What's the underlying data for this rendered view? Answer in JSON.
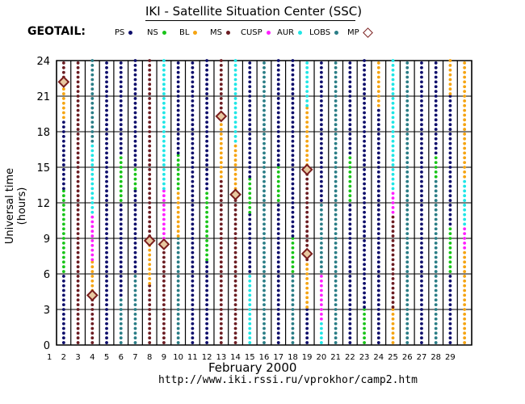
{
  "title": "IKI - Satellite Situation Center (SSC)",
  "mission": "GEOTAIL:",
  "legend": [
    {
      "label": "PS",
      "color": "#0d0d6b"
    },
    {
      "label": "NS",
      "color": "#19c419"
    },
    {
      "label": "BL",
      "color": "#f5a412"
    },
    {
      "label": "MS",
      "color": "#6b1c22"
    },
    {
      "label": "CUSP",
      "color": "#ff1fff"
    },
    {
      "label": "AUR",
      "color": "#1fe6e6"
    },
    {
      "label": "LOBS",
      "color": "#2a7d86"
    },
    {
      "label": "MP",
      "color": "#7a1e1e"
    }
  ],
  "footer": {
    "month": "February    2000",
    "url": "http://www.iki.rssi.ru/vprokhor/camp2.htm"
  },
  "chart_data": {
    "type": "scatter",
    "title": "IKI - Satellite Situation Center (SSC)",
    "xlabel": "February    2000",
    "ylabel": "Universal time (hours)",
    "x_ticks": [
      "1",
      "2",
      "3",
      "4",
      "5",
      "6",
      "7",
      "8",
      "9",
      "10",
      "11",
      "12",
      "13",
      "14",
      "15",
      "16",
      "17",
      "18",
      "19",
      "20",
      "21",
      "22",
      "23",
      "24",
      "25",
      "26",
      "27",
      "28",
      "29"
    ],
    "y_ticks": [
      0,
      3,
      6,
      9,
      12,
      15,
      18,
      21,
      24
    ],
    "ylim": [
      0,
      24
    ],
    "grid": true,
    "legend_placement": "top",
    "region_series": [
      {
        "day": 2,
        "segments": [
          {
            "region": "PS",
            "from": 0,
            "to": 6
          },
          {
            "region": "NS",
            "from": 6,
            "to": 13
          },
          {
            "region": "PS",
            "from": 13,
            "to": 19
          },
          {
            "region": "BL",
            "from": 19,
            "to": 22
          },
          {
            "region": "MS",
            "from": 22,
            "to": 24
          }
        ]
      },
      {
        "day": 3,
        "segments": [
          {
            "region": "MS",
            "from": 0,
            "to": 24
          }
        ]
      },
      {
        "day": 4,
        "segments": [
          {
            "region": "MS",
            "from": 0,
            "to": 4
          },
          {
            "region": "BL",
            "from": 4,
            "to": 7
          },
          {
            "region": "CUSP",
            "from": 7,
            "to": 11
          },
          {
            "region": "AUR",
            "from": 11,
            "to": 17
          },
          {
            "region": "LOBS",
            "from": 17,
            "to": 24
          }
        ]
      },
      {
        "day": 5,
        "segments": [
          {
            "region": "PS",
            "from": 0,
            "to": 24
          }
        ]
      },
      {
        "day": 6,
        "segments": [
          {
            "region": "LOBS",
            "from": 0,
            "to": 4
          },
          {
            "region": "PS",
            "from": 4,
            "to": 12
          },
          {
            "region": "NS",
            "from": 12,
            "to": 16
          },
          {
            "region": "PS",
            "from": 16,
            "to": 24
          }
        ]
      },
      {
        "day": 7,
        "segments": [
          {
            "region": "LOBS",
            "from": 0,
            "to": 6
          },
          {
            "region": "PS",
            "from": 6,
            "to": 13
          },
          {
            "region": "NS",
            "from": 13,
            "to": 15
          },
          {
            "region": "PS",
            "from": 15,
            "to": 24
          }
        ]
      },
      {
        "day": 8,
        "segments": [
          {
            "region": "MS",
            "from": 0,
            "to": 5
          },
          {
            "region": "BL",
            "from": 5,
            "to": 9
          },
          {
            "region": "MS",
            "from": 9,
            "to": 24
          }
        ]
      },
      {
        "day": 9,
        "segments": [
          {
            "region": "MS",
            "from": 0,
            "to": 8
          },
          {
            "region": "CUSP",
            "from": 8,
            "to": 13
          },
          {
            "region": "AUR",
            "from": 13,
            "to": 24
          }
        ]
      },
      {
        "day": 10,
        "segments": [
          {
            "region": "LOBS",
            "from": 0,
            "to": 9
          },
          {
            "region": "BL",
            "from": 9,
            "to": 13
          },
          {
            "region": "NS",
            "from": 13,
            "to": 16
          },
          {
            "region": "PS",
            "from": 16,
            "to": 24
          }
        ]
      },
      {
        "day": 11,
        "segments": [
          {
            "region": "PS",
            "from": 0,
            "to": 24
          }
        ]
      },
      {
        "day": 12,
        "segments": [
          {
            "region": "PS",
            "from": 0,
            "to": 7
          },
          {
            "region": "NS",
            "from": 7,
            "to": 13
          },
          {
            "region": "PS",
            "from": 13,
            "to": 24
          }
        ]
      },
      {
        "day": 13,
        "segments": [
          {
            "region": "MS",
            "from": 0,
            "to": 14
          },
          {
            "region": "BL",
            "from": 14,
            "to": 19
          },
          {
            "region": "MS",
            "from": 19,
            "to": 24
          }
        ]
      },
      {
        "day": 14,
        "segments": [
          {
            "region": "MS",
            "from": 0,
            "to": 13
          },
          {
            "region": "BL",
            "from": 13,
            "to": 17
          },
          {
            "region": "AUR",
            "from": 17,
            "to": 24
          }
        ]
      },
      {
        "day": 15,
        "segments": [
          {
            "region": "AUR",
            "from": 0,
            "to": 6
          },
          {
            "region": "PS",
            "from": 6,
            "to": 11
          },
          {
            "region": "NS",
            "from": 11,
            "to": 14
          },
          {
            "region": "PS",
            "from": 14,
            "to": 24
          }
        ]
      },
      {
        "day": 16,
        "segments": [
          {
            "region": "LOBS",
            "from": 0,
            "to": 24
          }
        ]
      },
      {
        "day": 17,
        "segments": [
          {
            "region": "PS",
            "from": 0,
            "to": 12
          },
          {
            "region": "NS",
            "from": 12,
            "to": 15
          },
          {
            "region": "PS",
            "from": 15,
            "to": 24
          }
        ]
      },
      {
        "day": 18,
        "segments": [
          {
            "region": "LOBS",
            "from": 0,
            "to": 6
          },
          {
            "region": "NS",
            "from": 6,
            "to": 9
          },
          {
            "region": "PS",
            "from": 9,
            "to": 24
          }
        ]
      },
      {
        "day": 19,
        "segments": [
          {
            "region": "PS",
            "from": 0,
            "to": 3
          },
          {
            "region": "BL",
            "from": 3,
            "to": 7
          },
          {
            "region": "MS",
            "from": 7,
            "to": 15
          },
          {
            "region": "BL",
            "from": 15,
            "to": 20
          },
          {
            "region": "AUR",
            "from": 20,
            "to": 24
          }
        ]
      },
      {
        "day": 20,
        "segments": [
          {
            "region": "AUR",
            "from": 0,
            "to": 2
          },
          {
            "region": "CUSP",
            "from": 2,
            "to": 6
          },
          {
            "region": "LOBS",
            "from": 6,
            "to": 12
          },
          {
            "region": "PS",
            "from": 12,
            "to": 24
          }
        ]
      },
      {
        "day": 21,
        "segments": [
          {
            "region": "LOBS",
            "from": 0,
            "to": 24
          }
        ]
      },
      {
        "day": 22,
        "segments": [
          {
            "region": "PS",
            "from": 0,
            "to": 12
          },
          {
            "region": "NS",
            "from": 12,
            "to": 16
          },
          {
            "region": "PS",
            "from": 16,
            "to": 24
          }
        ]
      },
      {
        "day": 23,
        "segments": [
          {
            "region": "NS",
            "from": 0,
            "to": 3
          },
          {
            "region": "PS",
            "from": 3,
            "to": 24
          }
        ]
      },
      {
        "day": 24,
        "segments": [
          {
            "region": "PS",
            "from": 0,
            "to": 20
          },
          {
            "region": "BL",
            "from": 20,
            "to": 24
          }
        ]
      },
      {
        "day": 25,
        "segments": [
          {
            "region": "BL",
            "from": 0,
            "to": 3
          },
          {
            "region": "MS",
            "from": 3,
            "to": 11
          },
          {
            "region": "CUSP",
            "from": 11,
            "to": 13
          },
          {
            "region": "AUR",
            "from": 13,
            "to": 24
          }
        ]
      },
      {
        "day": 26,
        "segments": [
          {
            "region": "LOBS",
            "from": 0,
            "to": 24
          }
        ]
      },
      {
        "day": 27,
        "segments": [
          {
            "region": "PS",
            "from": 0,
            "to": 24
          }
        ]
      },
      {
        "day": 28,
        "segments": [
          {
            "region": "LOBS",
            "from": 0,
            "to": 14
          },
          {
            "region": "NS",
            "from": 14,
            "to": 16
          },
          {
            "region": "PS",
            "from": 16,
            "to": 24
          }
        ]
      },
      {
        "day": 29,
        "segments": [
          {
            "region": "PS",
            "from": 0,
            "to": 6
          },
          {
            "region": "NS",
            "from": 6,
            "to": 10
          },
          {
            "region": "PS",
            "from": 10,
            "to": 21
          },
          {
            "region": "BL",
            "from": 21,
            "to": 24
          }
        ]
      },
      {
        "day": 30,
        "segments": [
          {
            "region": "BL",
            "from": 0,
            "to": 8
          },
          {
            "region": "CUSP",
            "from": 8,
            "to": 10
          },
          {
            "region": "AUR",
            "from": 10,
            "to": 14
          },
          {
            "region": "BL",
            "from": 14,
            "to": 24
          }
        ]
      }
    ],
    "mp_crossings": [
      {
        "day": 2,
        "ut": 22.2
      },
      {
        "day": 4,
        "ut": 4.2
      },
      {
        "day": 8,
        "ut": 8.8
      },
      {
        "day": 9,
        "ut": 8.5
      },
      {
        "day": 13,
        "ut": 19.3
      },
      {
        "day": 14,
        "ut": 12.7
      },
      {
        "day": 19,
        "ut": 14.8
      },
      {
        "day": 19,
        "ut": 7.7
      }
    ]
  }
}
